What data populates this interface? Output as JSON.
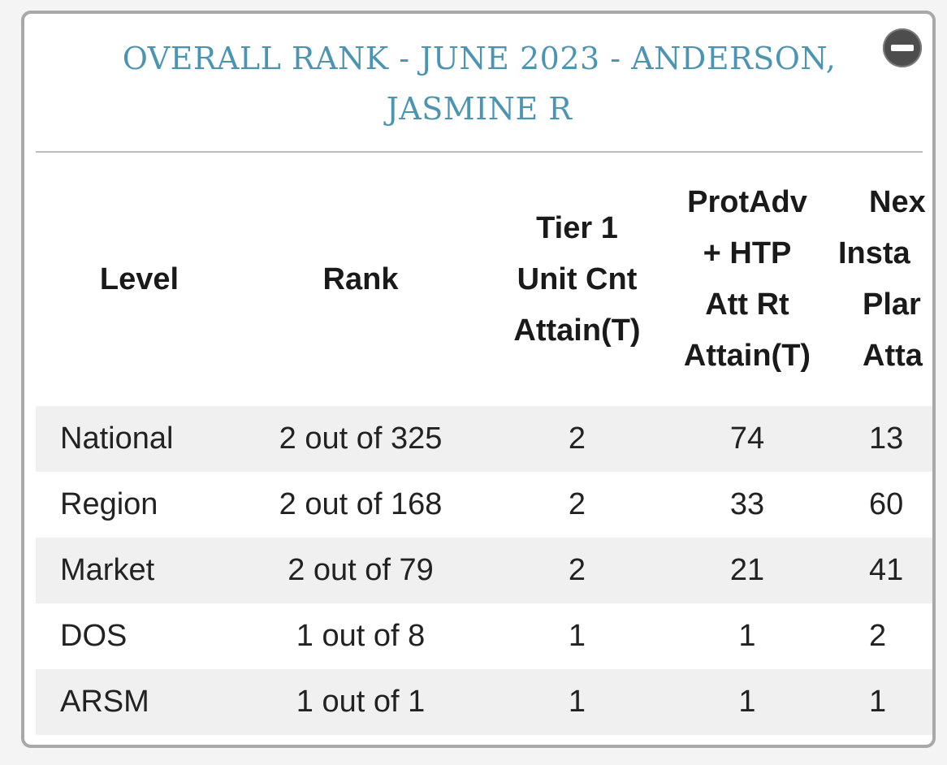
{
  "panel": {
    "title": "OVERALL RANK - JUNE 2023 - ANDERSON, JASMINE R"
  },
  "table": {
    "headers": {
      "level": "Level",
      "rank": "Rank",
      "tier1": [
        "Tier 1",
        "Unit Cnt",
        "Attain(T)"
      ],
      "protadv": [
        "ProtAdv",
        "+ HTP",
        "Att Rt",
        "Attain(T)"
      ],
      "next": [
        "Nex",
        "Insta",
        "Plar",
        "Atta"
      ]
    },
    "rows": [
      {
        "level": "National",
        "rank": "2 out of 325",
        "tier1": "2",
        "protadv": "74",
        "next": "13"
      },
      {
        "level": "Region",
        "rank": "2 out of 168",
        "tier1": "2",
        "protadv": "33",
        "next": "60"
      },
      {
        "level": "Market",
        "rank": "2 out of 79",
        "tier1": "2",
        "protadv": "21",
        "next": "41"
      },
      {
        "level": "DOS",
        "rank": "1 out of 8",
        "tier1": "1",
        "protadv": "1",
        "next": "2"
      },
      {
        "level": "ARSM",
        "rank": "1 out of 1",
        "tier1": "1",
        "protadv": "1",
        "next": "1"
      }
    ]
  },
  "icons": {
    "collapse": "minus-circle-icon"
  },
  "colors": {
    "title": "#4a95b4",
    "stripe": "#f0f0f0",
    "border": "#a8a8a8"
  }
}
